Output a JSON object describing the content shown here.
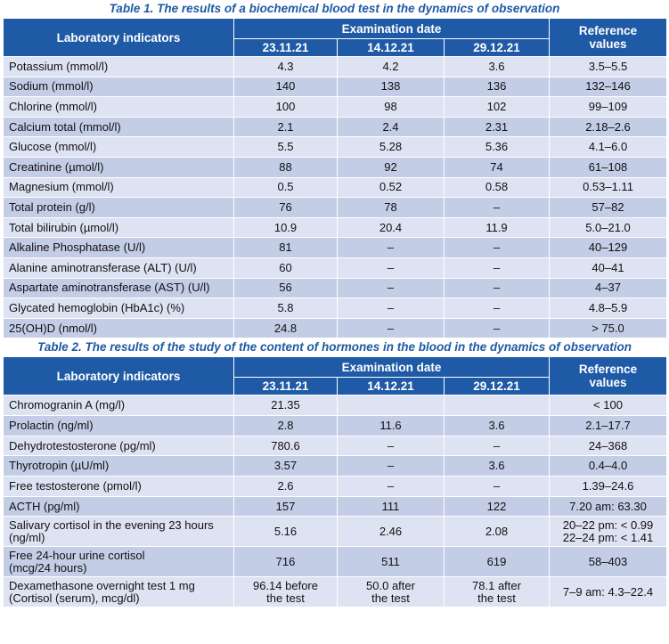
{
  "table1": {
    "caption": "Table 1. The results of a biochemical blood test in the dynamics of observation",
    "header": {
      "indicators": "Laboratory indicators",
      "exam_date": "Examination date",
      "dates": [
        "23.11.21",
        "14.12.21",
        "29.12.21"
      ],
      "reference_line1": "Reference",
      "reference_line2": "values"
    },
    "rows": [
      {
        "label": "Potassium (mmol/l)",
        "v1": "4.3",
        "v2": "4.2",
        "v3": "3.6",
        "ref": "3.5–5.5"
      },
      {
        "label": "Sodium (mmol/l)",
        "v1": "140",
        "v2": "138",
        "v3": "136",
        "ref": "132–146"
      },
      {
        "label": "Chlorine (mmol/l)",
        "v1": "100",
        "v2": "98",
        "v3": "102",
        "ref": "99–109"
      },
      {
        "label": "Calcium total (mmol/l)",
        "v1": "2.1",
        "v2": "2.4",
        "v3": "2.31",
        "ref": "2.18–2.6"
      },
      {
        "label": "Glucose (mmol/l)",
        "v1": "5.5",
        "v2": "5.28",
        "v3": "5.36",
        "ref": "4.1–6.0"
      },
      {
        "label": "Creatinine (µmol/l)",
        "v1": "88",
        "v2": "92",
        "v3": "74",
        "ref": "61–108"
      },
      {
        "label": "Magnesium (mmol/l)",
        "v1": "0.5",
        "v2": "0.52",
        "v3": "0.58",
        "ref": "0.53–1.11"
      },
      {
        "label": "Total protein (g/l)",
        "v1": "76",
        "v2": "78",
        "v3": "–",
        "ref": "57–82"
      },
      {
        "label": "Total bilirubin (µmol/l)",
        "v1": "10.9",
        "v2": "20.4",
        "v3": "11.9",
        "ref": "5.0–21.0"
      },
      {
        "label": "Alkaline Phosphatase (U/l)",
        "v1": "81",
        "v2": "–",
        "v3": "–",
        "ref": "40–129"
      },
      {
        "label": "Alanine aminotransferase (ALT) (U/l)",
        "v1": "60",
        "v2": "–",
        "v3": "–",
        "ref": "40–41"
      },
      {
        "label": "Aspartate aminotransferase (AST) (U/l)",
        "v1": "56",
        "v2": "–",
        "v3": "–",
        "ref": "4–37"
      },
      {
        "label": "Glycated hemoglobin (HbA1c) (%)",
        "v1": "5.8",
        "v2": "–",
        "v3": "–",
        "ref": "4.8–5.9"
      },
      {
        "label": "25(OH)D (nmol/l)",
        "v1": "24.8",
        "v2": "–",
        "v3": "–",
        "ref": "> 75.0"
      }
    ]
  },
  "table2": {
    "caption": "Table 2. The results of the study of the content of hormones in the blood in the dynamics of observation",
    "header": {
      "indicators": "Laboratory indicators",
      "exam_date": "Examination date",
      "dates": [
        "23.11.21",
        "14.12.21",
        "29.12.21"
      ],
      "reference_line1": "Reference",
      "reference_line2": "values"
    },
    "rows": [
      {
        "label1": "Chromogranin A (mg/l)",
        "label2": "",
        "v1a": "21.35",
        "v1b": "",
        "v2a": "",
        "v2b": "",
        "v3a": "",
        "v3b": "",
        "ref1": "< 100",
        "ref2": ""
      },
      {
        "label1": "Prolactin (ng/ml)",
        "label2": "",
        "v1a": "2.8",
        "v1b": "",
        "v2a": "11.6",
        "v2b": "",
        "v3a": "3.6",
        "v3b": "",
        "ref1": "2.1–17.7",
        "ref2": ""
      },
      {
        "label1": "Dehydrotestosterone (pg/ml)",
        "label2": "",
        "v1a": "780.6",
        "v1b": "",
        "v2a": "–",
        "v2b": "",
        "v3a": "–",
        "v3b": "",
        "ref1": "24–368",
        "ref2": ""
      },
      {
        "label1": "Thyrotropin (µU/ml)",
        "label2": "",
        "v1a": "3.57",
        "v1b": "",
        "v2a": "–",
        "v2b": "",
        "v3a": "3.6",
        "v3b": "",
        "ref1": "0.4–4.0",
        "ref2": ""
      },
      {
        "label1": "Free testosterone (pmol/l)",
        "label2": "",
        "v1a": "2.6",
        "v1b": "",
        "v2a": "–",
        "v2b": "",
        "v3a": "–",
        "v3b": "",
        "ref1": "1.39–24.6",
        "ref2": ""
      },
      {
        "label1": "ACTH (pg/ml)",
        "label2": "",
        "v1a": "157",
        "v1b": "",
        "v2a": "111",
        "v2b": "",
        "v3a": "122",
        "v3b": "",
        "ref1": "7.20 am: 63.30",
        "ref2": ""
      },
      {
        "label1": "Salivary cortisol in the evening 23 hours",
        "label2": "(ng/ml)",
        "v1a": "5.16",
        "v1b": "",
        "v2a": "2.46",
        "v2b": "",
        "v3a": "2.08",
        "v3b": "",
        "ref1": "20–22 pm: < 0.99",
        "ref2": "22–24 pm: < 1.41"
      },
      {
        "label1": "Free 24-hour urine cortisol",
        "label2": "(mcg/24 hours)",
        "v1a": "716",
        "v1b": "",
        "v2a": "511",
        "v2b": "",
        "v3a": "619",
        "v3b": "",
        "ref1": "58–403",
        "ref2": ""
      },
      {
        "label1": "Dexamethasone overnight test 1 mg",
        "label2": "(Cortisol (serum), mcg/dl)",
        "v1a": "96.14 before",
        "v1b": "the test",
        "v2a": "50.0 after",
        "v2b": "the test",
        "v3a": "78.1 after",
        "v3b": "the test",
        "ref1": "7–9 am: 4.3–22.4",
        "ref2": ""
      }
    ]
  }
}
